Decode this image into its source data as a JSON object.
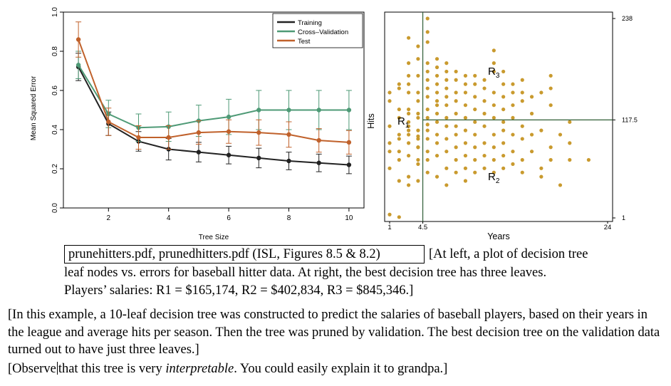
{
  "chart_data": [
    {
      "type": "line",
      "title": "",
      "xlabel": "Tree Size",
      "ylabel": "Mean Squared Error",
      "xlim": [
        0.5,
        10.5
      ],
      "ylim": [
        0.0,
        1.0
      ],
      "x_ticks": [
        2,
        4,
        6,
        8,
        10
      ],
      "y_ticks": [
        "0.0",
        "0.2",
        "0.4",
        "0.6",
        "0.8",
        "1.0"
      ],
      "grid": false,
      "legend_position": "top-right",
      "x": [
        1,
        2,
        3,
        4,
        5,
        6,
        7,
        8,
        9,
        10
      ],
      "series": [
        {
          "name": "Training",
          "color": "#222222",
          "values": [
            0.72,
            0.43,
            0.34,
            0.3,
            0.285,
            0.27,
            0.255,
            0.24,
            0.23,
            0.22
          ],
          "error": [
            0.07,
            0.06,
            0.05,
            0.055,
            0.05,
            0.045,
            0.05,
            0.045,
            0.045,
            0.045
          ]
        },
        {
          "name": "Cross–Validation",
          "color": "#4e9a76",
          "values": [
            0.73,
            0.48,
            0.41,
            0.415,
            0.445,
            0.465,
            0.5,
            0.5,
            0.5,
            0.5
          ],
          "error": [
            0.07,
            0.07,
            0.07,
            0.075,
            0.08,
            0.09,
            0.1,
            0.1,
            0.1,
            0.1
          ]
        },
        {
          "name": "Test",
          "color": "#c0612b",
          "values": [
            0.86,
            0.44,
            0.36,
            0.36,
            0.385,
            0.39,
            0.385,
            0.375,
            0.345,
            0.335
          ],
          "error": [
            0.09,
            0.07,
            0.06,
            0.06,
            0.06,
            0.06,
            0.065,
            0.065,
            0.06,
            0.06
          ]
        }
      ]
    },
    {
      "type": "scatter",
      "title": "",
      "xlabel": "Years",
      "ylabel": "Hits",
      "xlim": [
        1,
        24
      ],
      "ylim": [
        1,
        238
      ],
      "x_ticks": [
        "1",
        "4.5",
        "24"
      ],
      "y_ticks_right": [
        "238",
        "117.5",
        "1"
      ],
      "grid": false,
      "point_color": "#c99a2e",
      "split_color": "#2f5e35",
      "splits": {
        "years": 4.5,
        "hits": 117.5
      },
      "regions": [
        "R1",
        "R2",
        "R3"
      ],
      "points": [
        [
          1,
          5
        ],
        [
          2,
          2
        ],
        [
          2,
          95
        ],
        [
          1,
          150
        ],
        [
          2,
          155
        ],
        [
          3,
          215
        ],
        [
          3,
          185
        ],
        [
          4,
          205
        ],
        [
          4,
          190
        ],
        [
          5,
          238
        ],
        [
          5,
          222
        ],
        [
          5,
          210
        ],
        [
          1,
          80
        ],
        [
          1,
          110
        ],
        [
          1,
          90
        ],
        [
          1,
          140
        ],
        [
          1,
          60
        ],
        [
          2,
          70
        ],
        [
          2,
          100
        ],
        [
          2,
          130
        ],
        [
          2,
          160
        ],
        [
          2,
          80
        ],
        [
          2,
          45
        ],
        [
          2,
          120
        ],
        [
          3,
          40
        ],
        [
          3,
          50
        ],
        [
          3,
          75
        ],
        [
          3,
          90
        ],
        [
          3,
          105
        ],
        [
          3,
          115
        ],
        [
          3,
          125
        ],
        [
          3,
          130
        ],
        [
          3,
          150
        ],
        [
          3,
          160
        ],
        [
          3,
          170
        ],
        [
          3,
          100
        ],
        [
          3,
          110
        ],
        [
          4,
          45
        ],
        [
          4,
          70
        ],
        [
          4,
          85
        ],
        [
          4,
          95
        ],
        [
          4,
          120
        ],
        [
          4,
          140
        ],
        [
          4,
          150
        ],
        [
          4,
          170
        ],
        [
          4,
          105
        ],
        [
          4,
          125
        ],
        [
          4,
          65
        ],
        [
          4,
          85
        ],
        [
          4,
          98
        ],
        [
          5,
          55
        ],
        [
          5,
          70
        ],
        [
          5,
          80
        ],
        [
          5,
          95
        ],
        [
          5,
          105
        ],
        [
          5,
          120
        ],
        [
          5,
          130
        ],
        [
          5,
          145
        ],
        [
          5,
          155
        ],
        [
          5,
          165
        ],
        [
          5,
          175
        ],
        [
          5,
          185
        ],
        [
          5,
          112
        ],
        [
          6,
          50
        ],
        [
          6,
          75
        ],
        [
          6,
          90
        ],
        [
          6,
          100
        ],
        [
          6,
          115
        ],
        [
          6,
          125
        ],
        [
          6,
          140
        ],
        [
          6,
          150
        ],
        [
          6,
          160
        ],
        [
          6,
          170
        ],
        [
          6,
          180
        ],
        [
          6,
          190
        ],
        [
          6,
          135
        ],
        [
          7,
          40
        ],
        [
          7,
          60
        ],
        [
          7,
          80
        ],
        [
          7,
          95
        ],
        [
          7,
          110
        ],
        [
          7,
          120
        ],
        [
          7,
          135
        ],
        [
          7,
          145
        ],
        [
          7,
          155
        ],
        [
          7,
          165
        ],
        [
          7,
          175
        ],
        [
          7,
          185
        ],
        [
          8,
          55
        ],
        [
          8,
          70
        ],
        [
          8,
          85
        ],
        [
          8,
          100
        ],
        [
          8,
          110
        ],
        [
          8,
          125
        ],
        [
          8,
          140
        ],
        [
          8,
          150
        ],
        [
          8,
          165
        ],
        [
          8,
          175
        ],
        [
          9,
          45
        ],
        [
          9,
          60
        ],
        [
          9,
          75
        ],
        [
          9,
          90
        ],
        [
          9,
          105
        ],
        [
          9,
          120
        ],
        [
          9,
          135
        ],
        [
          9,
          150
        ],
        [
          9,
          160
        ],
        [
          9,
          170
        ],
        [
          10,
          55
        ],
        [
          10,
          70
        ],
        [
          10,
          85
        ],
        [
          10,
          100
        ],
        [
          10,
          115
        ],
        [
          10,
          130
        ],
        [
          10,
          145
        ],
        [
          10,
          160
        ],
        [
          10,
          170
        ],
        [
          11,
          60
        ],
        [
          11,
          75
        ],
        [
          11,
          90
        ],
        [
          11,
          110
        ],
        [
          11,
          125
        ],
        [
          11,
          140
        ],
        [
          11,
          155
        ],
        [
          11,
          165
        ],
        [
          12,
          55
        ],
        [
          12,
          70
        ],
        [
          12,
          85
        ],
        [
          12,
          100
        ],
        [
          12,
          120
        ],
        [
          12,
          135
        ],
        [
          12,
          150
        ],
        [
          12,
          175
        ],
        [
          12,
          185
        ],
        [
          12,
          200
        ],
        [
          13,
          60
        ],
        [
          13,
          75
        ],
        [
          13,
          90
        ],
        [
          13,
          105
        ],
        [
          13,
          115
        ],
        [
          13,
          130
        ],
        [
          13,
          145
        ],
        [
          13,
          160
        ],
        [
          13,
          175
        ],
        [
          14,
          65
        ],
        [
          14,
          80
        ],
        [
          14,
          100
        ],
        [
          14,
          120
        ],
        [
          14,
          135
        ],
        [
          14,
          150
        ],
        [
          14,
          160
        ],
        [
          15,
          55
        ],
        [
          15,
          70
        ],
        [
          15,
          95
        ],
        [
          15,
          110
        ],
        [
          15,
          140
        ],
        [
          15,
          150
        ],
        [
          15,
          165
        ],
        [
          16,
          80
        ],
        [
          16,
          100
        ],
        [
          16,
          125
        ],
        [
          16,
          145
        ],
        [
          17,
          50
        ],
        [
          17,
          60
        ],
        [
          17,
          105
        ],
        [
          17,
          150
        ],
        [
          18,
          70
        ],
        [
          18,
          85
        ],
        [
          18,
          135
        ],
        [
          18,
          155
        ],
        [
          18,
          170
        ],
        [
          19,
          40
        ],
        [
          19,
          100
        ],
        [
          20,
          70
        ],
        [
          20,
          90
        ],
        [
          20,
          115
        ],
        [
          22,
          70
        ]
      ]
    }
  ],
  "caption": {
    "boxed": "prunehitters.pdf, prunedhitters.pdf (ISL, Figures 8.5 & 8.2)",
    "line1_rest": "[At left, a plot of decision tree",
    "line2": "leaf nodes vs. errors for baseball hitter data.  At right, the best decision tree has three leaves.",
    "line3": "Players’ salaries: R1 = $165,174, R2 = $402,834, R3 = $845,346.]"
  },
  "paragraph1": "[In this example, a 10-leaf decision tree was constructed to predict the salaries of baseball players, based on their years in the league and average hits per season.  Then the tree was pruned by validation.  The best decision tree on the validation data turned out to have just three leaves.]",
  "paragraph2": {
    "part1": "[Observe",
    "part2": "that this tree is very ",
    "emphasis": "interpretable",
    "part3": ".  You could easily explain it to grandpa.]"
  }
}
